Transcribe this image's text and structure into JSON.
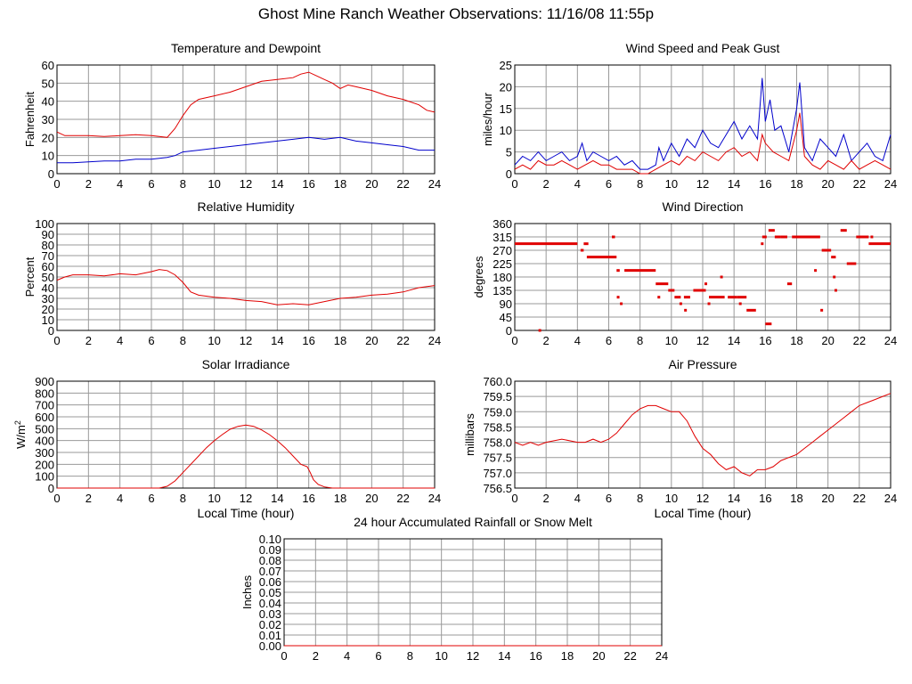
{
  "title": "Ghost Mine Ranch Weather Observations: 11/16/08 11:55p",
  "chart_data": [
    {
      "type": "line",
      "title": "Temperature and Dewpoint",
      "xlabel": "",
      "ylabel": "Fahrenheit",
      "xlim": [
        0,
        24
      ],
      "ylim": [
        0,
        60
      ],
      "x_ticks": [
        0,
        2,
        4,
        6,
        8,
        10,
        12,
        14,
        16,
        18,
        20,
        22,
        24
      ],
      "y_ticks": [
        "0",
        "10",
        "20",
        "30",
        "40",
        "50",
        "60"
      ],
      "grid": true,
      "series": [
        {
          "color": "#e00000",
          "x": [
            0,
            0.5,
            1,
            2,
            3,
            4,
            5,
            6,
            7,
            7.5,
            8,
            8.5,
            9,
            10,
            11,
            12,
            13,
            14,
            15,
            15.5,
            16,
            16.5,
            17,
            17.5,
            18,
            18.5,
            19,
            20,
            21,
            22,
            23,
            23.5,
            24
          ],
          "y": [
            23,
            21,
            21,
            21,
            20.5,
            21,
            21.5,
            21,
            20,
            25,
            32,
            38,
            41,
            43,
            45,
            48,
            51,
            52,
            53,
            55,
            56,
            54,
            52,
            50,
            47,
            49,
            48,
            46,
            43,
            41,
            38,
            35,
            34
          ]
        },
        {
          "color": "#0000cc",
          "x": [
            0,
            1,
            2,
            3,
            4,
            5,
            6,
            7,
            7.5,
            8,
            9,
            10,
            11,
            12,
            13,
            14,
            15,
            16,
            17,
            18,
            19,
            20,
            21,
            22,
            23,
            24
          ],
          "y": [
            6,
            6,
            6.5,
            7,
            7,
            8,
            8,
            9,
            10,
            12,
            13,
            14,
            15,
            16,
            17,
            18,
            19,
            20,
            19,
            20,
            18,
            17,
            16,
            15,
            13,
            13
          ]
        }
      ]
    },
    {
      "type": "line",
      "title": "Wind Speed and Peak Gust",
      "xlabel": "",
      "ylabel": "miles/hour",
      "xlim": [
        0,
        24
      ],
      "ylim": [
        0,
        25
      ],
      "x_ticks": [
        0,
        2,
        4,
        6,
        8,
        10,
        12,
        14,
        16,
        18,
        20,
        22,
        24
      ],
      "y_ticks": [
        "0",
        "5",
        "10",
        "15",
        "20",
        "25"
      ],
      "grid": true,
      "series": [
        {
          "color": "#0000cc",
          "x": [
            0,
            0.5,
            1,
            1.5,
            2,
            2.5,
            3,
            3.5,
            4,
            4.3,
            4.6,
            5,
            5.5,
            6,
            6.5,
            7,
            7.5,
            8,
            8.5,
            9,
            9.2,
            9.5,
            10,
            10.5,
            11,
            11.5,
            12,
            12.5,
            13,
            13.5,
            14,
            14.5,
            15,
            15.5,
            15.8,
            16,
            16.3,
            16.6,
            17,
            17.5,
            18,
            18.2,
            18.5,
            19,
            19.5,
            20,
            20.5,
            21,
            21.5,
            22,
            22.5,
            23,
            23.5,
            24
          ],
          "y": [
            2,
            4,
            3,
            5,
            3,
            4,
            5,
            3,
            4,
            7,
            3,
            5,
            4,
            3,
            4,
            2,
            3,
            1,
            1,
            2,
            6,
            3,
            7,
            4,
            8,
            6,
            10,
            7,
            6,
            9,
            12,
            8,
            11,
            8,
            22,
            12,
            17,
            10,
            11,
            5,
            15,
            21,
            6,
            3,
            8,
            6,
            4,
            9,
            3,
            5,
            7,
            4,
            3,
            9
          ]
        },
        {
          "color": "#e00000",
          "x": [
            0,
            0.5,
            1,
            1.5,
            2,
            2.5,
            3,
            3.5,
            4,
            4.5,
            5,
            5.5,
            6,
            6.5,
            7,
            7.5,
            8,
            8.5,
            9,
            9.5,
            10,
            10.5,
            11,
            11.5,
            12,
            12.5,
            13,
            13.5,
            14,
            14.5,
            15,
            15.5,
            15.8,
            16,
            16.5,
            17,
            17.5,
            18,
            18.2,
            18.5,
            19,
            19.5,
            20,
            20.5,
            21,
            21.5,
            22,
            22.5,
            23,
            23.5,
            24
          ],
          "y": [
            1,
            2,
            1,
            3,
            2,
            2,
            3,
            2,
            1,
            2,
            3,
            2,
            2,
            1,
            1,
            1,
            0,
            0,
            1,
            2,
            3,
            2,
            4,
            3,
            5,
            4,
            3,
            5,
            6,
            4,
            5,
            3,
            9,
            7,
            5,
            4,
            3,
            10,
            14,
            4,
            2,
            1,
            3,
            2,
            1,
            3,
            1,
            2,
            3,
            2,
            1
          ]
        }
      ]
    },
    {
      "type": "line",
      "title": "Relative Humidity",
      "xlabel": "",
      "ylabel": "Percent",
      "xlim": [
        0,
        24
      ],
      "ylim": [
        0,
        100
      ],
      "x_ticks": [
        0,
        2,
        4,
        6,
        8,
        10,
        12,
        14,
        16,
        18,
        20,
        22,
        24
      ],
      "y_ticks": [
        "0",
        "10",
        "20",
        "30",
        "40",
        "50",
        "60",
        "70",
        "80",
        "90",
        "100"
      ],
      "grid": true,
      "series": [
        {
          "color": "#e00000",
          "x": [
            0,
            0.5,
            1,
            2,
            3,
            4,
            5,
            6,
            6.5,
            7,
            7.5,
            8,
            8.5,
            9,
            10,
            11,
            12,
            13,
            14,
            15,
            16,
            17,
            18,
            19,
            20,
            21,
            22,
            23,
            24
          ],
          "y": [
            47,
            50,
            52,
            52,
            51,
            53,
            52,
            55,
            57,
            56,
            52,
            45,
            36,
            33,
            31,
            30,
            28,
            27,
            24,
            25,
            24,
            27,
            30,
            31,
            33,
            34,
            36,
            40,
            42
          ]
        }
      ]
    },
    {
      "type": "scatter",
      "title": "Wind Direction",
      "xlabel": "",
      "ylabel": "degrees",
      "xlim": [
        0,
        24
      ],
      "ylim": [
        0,
        360
      ],
      "x_ticks": [
        0,
        2,
        4,
        6,
        8,
        10,
        12,
        14,
        16,
        18,
        20,
        22,
        24
      ],
      "y_ticks": [
        "0",
        "45",
        "90",
        "135",
        "180",
        "225",
        "270",
        "315",
        "360"
      ],
      "grid": true,
      "series": [
        {
          "color": "#e00000",
          "segments": [
            [
              0,
              4,
              292
            ],
            [
              4.4,
              4.7,
              292
            ],
            [
              4.2,
              4.4,
              270
            ],
            [
              4.6,
              6.5,
              247
            ],
            [
              6.2,
              6.4,
              315
            ],
            [
              6.5,
              6.7,
              202
            ],
            [
              7,
              9,
              202
            ],
            [
              9,
              9.8,
              157
            ],
            [
              9.8,
              10.2,
              135
            ],
            [
              10.2,
              10.6,
              112
            ],
            [
              10.8,
              11.2,
              112
            ],
            [
              11.4,
              12.2,
              135
            ],
            [
              12.4,
              13.4,
              112
            ],
            [
              13.6,
              14.2,
              112
            ],
            [
              14.2,
              14.8,
              112
            ],
            [
              14.8,
              15.4,
              68
            ],
            [
              15.8,
              16,
              315
            ],
            [
              16,
              16.4,
              22
            ],
            [
              16.2,
              16.6,
              337
            ],
            [
              16.6,
              17,
              315
            ],
            [
              17,
              17.4,
              315
            ],
            [
              17.4,
              17.7,
              157
            ],
            [
              17.7,
              19.5,
              315
            ],
            [
              19.6,
              20.2,
              270
            ],
            [
              20.2,
              20.5,
              247
            ],
            [
              20.8,
              21.2,
              337
            ],
            [
              21.2,
              21.8,
              225
            ],
            [
              21.8,
              22.6,
              315
            ],
            [
              22.6,
              24,
              292
            ]
          ],
          "points": [
            [
              1.6,
              0
            ],
            [
              6.6,
              112
            ],
            [
              6.8,
              90
            ],
            [
              9.2,
              112
            ],
            [
              10.6,
              90
            ],
            [
              10.9,
              68
            ],
            [
              12.2,
              157
            ],
            [
              12.4,
              90
            ],
            [
              13.2,
              180
            ],
            [
              14.4,
              90
            ],
            [
              15.8,
              292
            ],
            [
              16,
              315
            ],
            [
              19.2,
              202
            ],
            [
              19.6,
              68
            ],
            [
              20.4,
              180
            ],
            [
              20.5,
              135
            ],
            [
              22.8,
              315
            ]
          ]
        }
      ]
    },
    {
      "type": "area",
      "title": "Solar Irradiance",
      "xlabel": "Local Time (hour)",
      "ylabel": "W/m2",
      "ylabel_main": "W/m",
      "ylabel_sup": "2",
      "xlim": [
        0,
        24
      ],
      "ylim": [
        0,
        900
      ],
      "x_ticks": [
        0,
        2,
        4,
        6,
        8,
        10,
        12,
        14,
        16,
        18,
        20,
        22,
        24
      ],
      "y_ticks": [
        "0",
        "100",
        "200",
        "300",
        "400",
        "500",
        "600",
        "700",
        "800",
        "900"
      ],
      "grid": true,
      "series": [
        {
          "color": "#e00000",
          "x": [
            0,
            6.5,
            7,
            7.5,
            8,
            8.5,
            9,
            9.5,
            10,
            10.5,
            11,
            11.5,
            12,
            12.5,
            13,
            13.5,
            14,
            14.5,
            15,
            15.5,
            15.9,
            16.1,
            16.3,
            16.6,
            17,
            17.5,
            24
          ],
          "y": [
            0,
            0,
            15,
            60,
            130,
            200,
            270,
            340,
            400,
            450,
            495,
            520,
            530,
            520,
            490,
            450,
            400,
            340,
            270,
            200,
            180,
            130,
            70,
            30,
            10,
            0,
            0
          ]
        }
      ]
    },
    {
      "type": "line",
      "title": "Air Pressure",
      "xlabel": "Local Time (hour)",
      "ylabel": "millibars",
      "xlim": [
        0,
        24
      ],
      "ylim": [
        756.5,
        760.0
      ],
      "x_ticks": [
        0,
        2,
        4,
        6,
        8,
        10,
        12,
        14,
        16,
        18,
        20,
        22,
        24
      ],
      "y_ticks": [
        "756.5",
        "757.0",
        "757.5",
        "758.0",
        "758.5",
        "759.0",
        "759.5",
        "760.0"
      ],
      "grid": true,
      "series": [
        {
          "color": "#e00000",
          "x": [
            0,
            0.5,
            1,
            1.5,
            2,
            3,
            4,
            4.5,
            5,
            5.5,
            6,
            6.5,
            7,
            7.5,
            8,
            8.5,
            9,
            9.5,
            10,
            10.5,
            11,
            11.5,
            12,
            12.5,
            13,
            13.5,
            14,
            14.5,
            15,
            15.5,
            16,
            16.5,
            17,
            17.5,
            18,
            18.5,
            19,
            19.5,
            20,
            20.5,
            21,
            21.5,
            22,
            22.5,
            23,
            23.5,
            24
          ],
          "y": [
            758.0,
            757.9,
            758.0,
            757.9,
            758.0,
            758.1,
            758.0,
            758.0,
            758.1,
            758.0,
            758.1,
            758.3,
            758.6,
            758.9,
            759.1,
            759.2,
            759.2,
            759.1,
            759.0,
            759.0,
            758.7,
            758.2,
            757.8,
            757.6,
            757.3,
            757.1,
            757.2,
            757.0,
            756.9,
            757.1,
            757.1,
            757.2,
            757.4,
            757.5,
            757.6,
            757.8,
            758.0,
            758.2,
            758.4,
            758.6,
            758.8,
            759.0,
            759.2,
            759.3,
            759.4,
            759.5,
            759.6
          ]
        }
      ]
    },
    {
      "type": "line",
      "title": "24 hour Accumulated Rainfall or Snow Melt",
      "xlabel": "",
      "ylabel": "Inches",
      "xlim": [
        0,
        24
      ],
      "ylim": [
        0,
        0.1
      ],
      "x_ticks": [
        0,
        2,
        4,
        6,
        8,
        10,
        12,
        14,
        16,
        18,
        20,
        22,
        24
      ],
      "y_ticks": [
        "0.00",
        "0.01",
        "0.02",
        "0.03",
        "0.04",
        "0.05",
        "0.06",
        "0.07",
        "0.08",
        "0.09",
        "0.10"
      ],
      "grid": true,
      "series": [
        {
          "color": "#e00000",
          "x": [
            0,
            24
          ],
          "y": [
            0,
            0
          ]
        }
      ]
    }
  ]
}
